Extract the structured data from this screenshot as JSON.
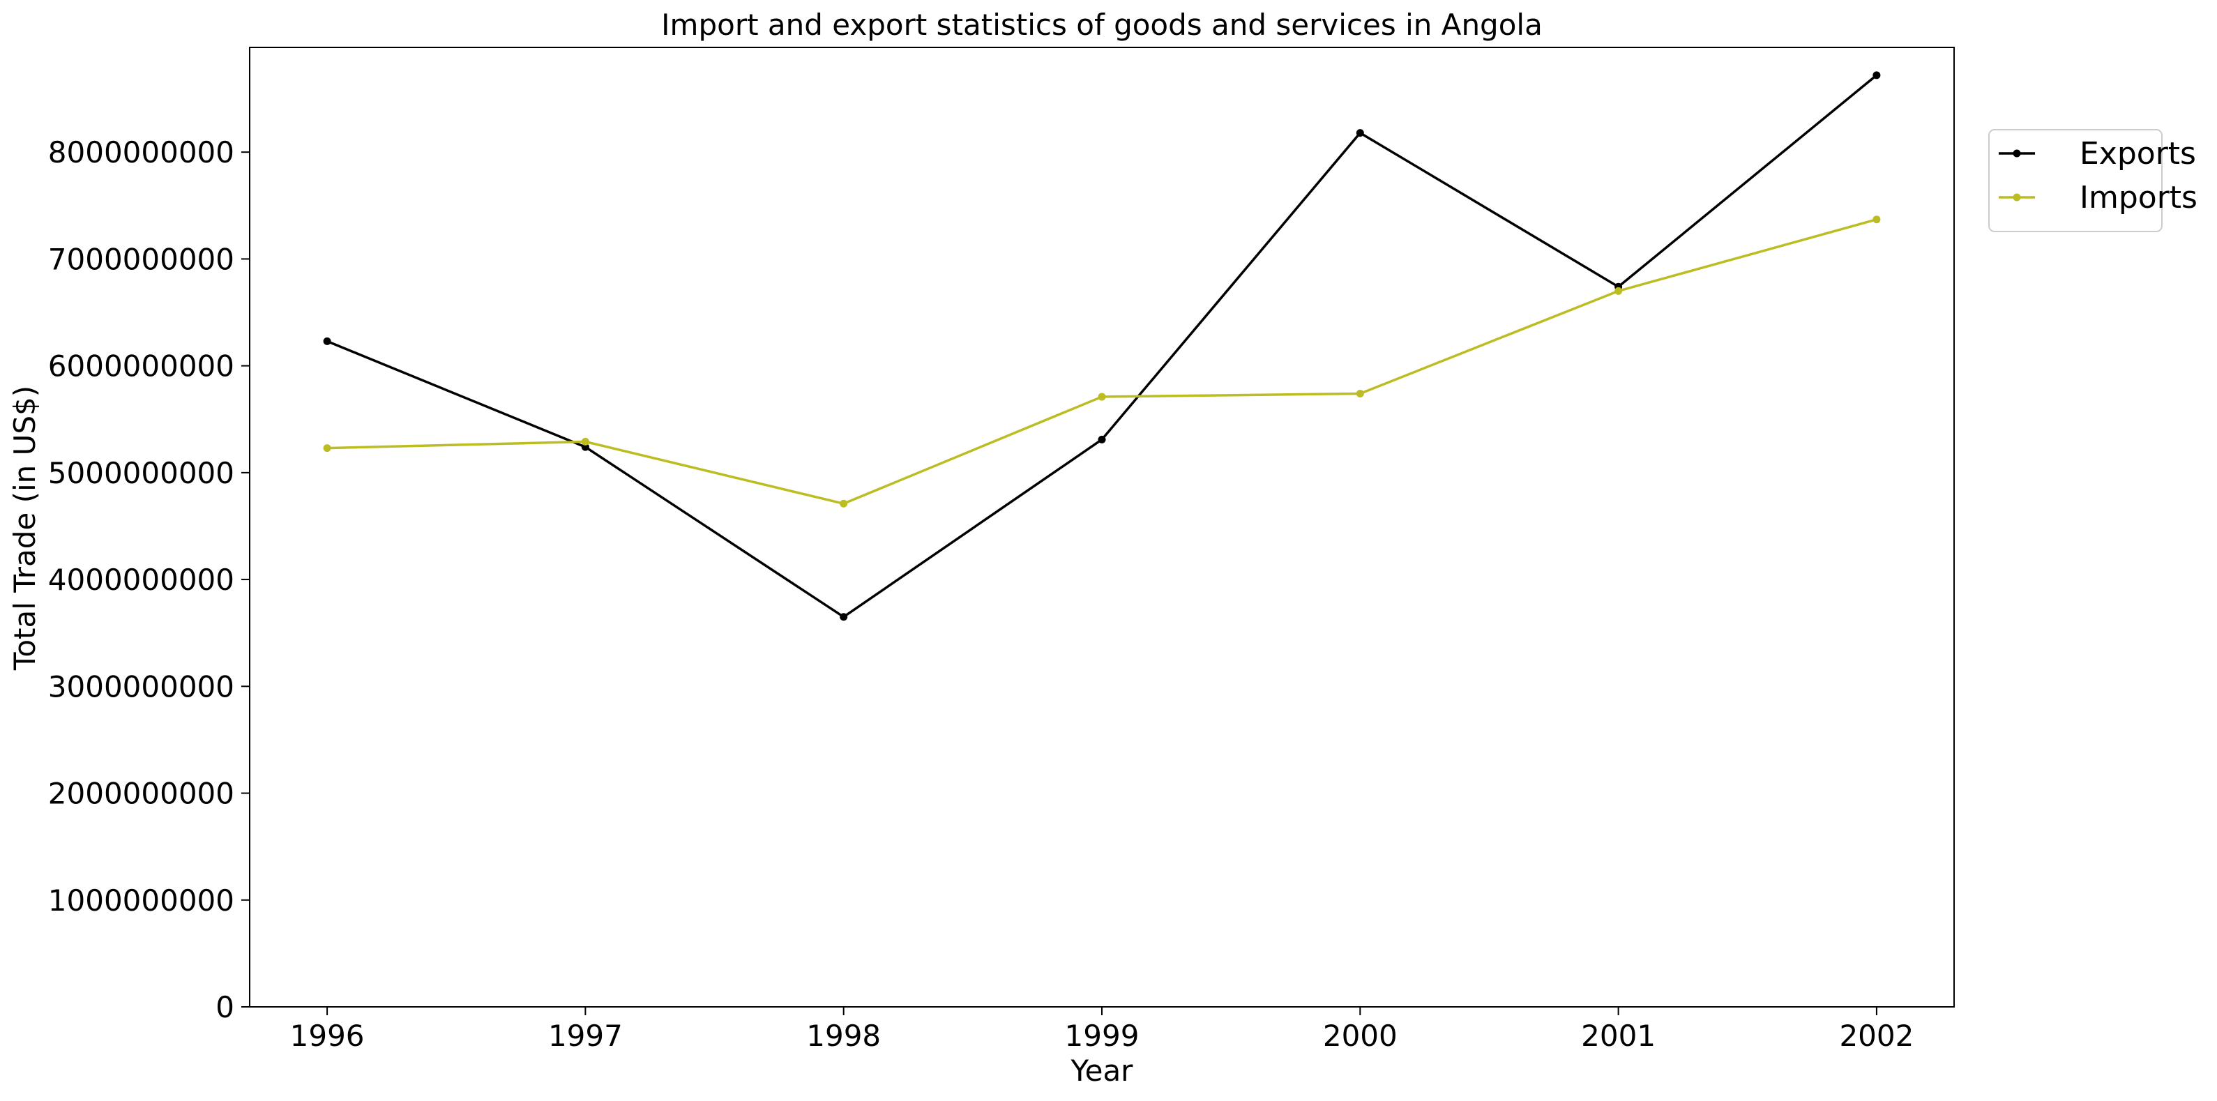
{
  "chart_data": {
    "type": "line",
    "title": "Import and export statistics of goods and services in Angola",
    "xlabel": "Year",
    "ylabel": "Total Trade (in US$)",
    "categories": [
      "1996",
      "1997",
      "1998",
      "1999",
      "2000",
      "2001",
      "2002"
    ],
    "y_ticks": [
      "0",
      "1000000000",
      "2000000000",
      "3000000000",
      "4000000000",
      "5000000000",
      "6000000000",
      "7000000000",
      "8000000000"
    ],
    "ylim": [
      0,
      8980000000
    ],
    "grid": false,
    "legend_position": "outside top-right",
    "series": [
      {
        "name": "Exports",
        "color": "#000000",
        "values": [
          6230000000,
          5240000000,
          3650000000,
          5310000000,
          8180000000,
          6740000000,
          8720000000
        ]
      },
      {
        "name": "Imports",
        "color": "#bcbd22",
        "values": [
          5230000000,
          5290000000,
          4710000000,
          5710000000,
          5740000000,
          6700000000,
          7370000000
        ]
      }
    ]
  }
}
